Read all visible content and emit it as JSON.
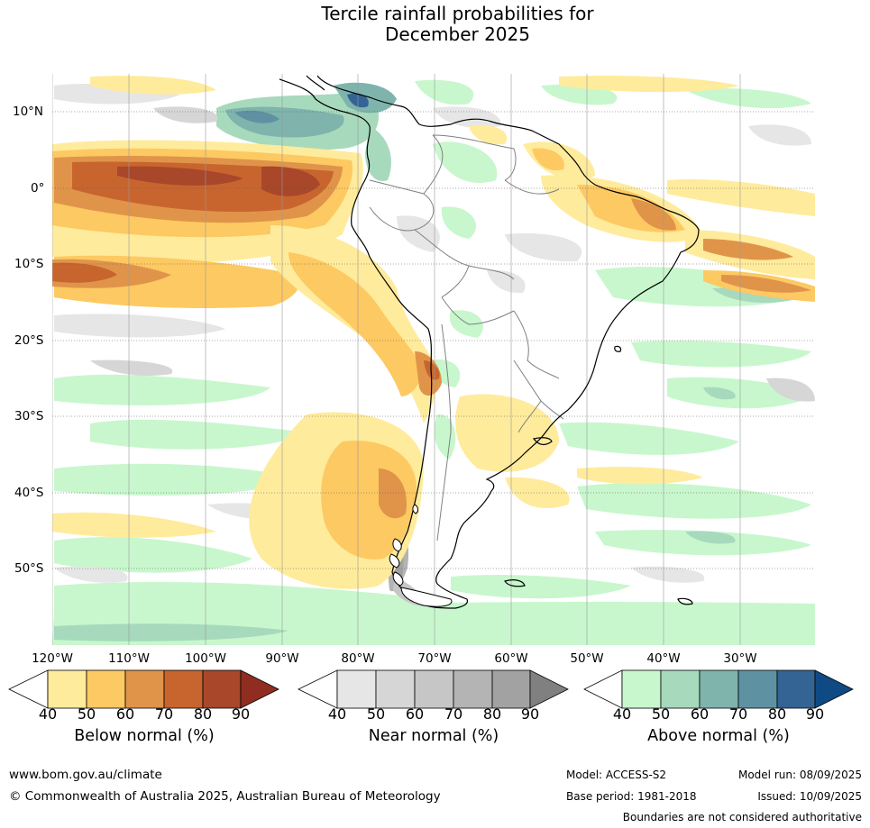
{
  "title": {
    "line1": "Tercile rainfall probabilities for",
    "line2": "December 2025"
  },
  "map": {
    "lat_labels": [
      "10°N",
      "0°",
      "10°S",
      "20°S",
      "30°S",
      "40°S",
      "50°S"
    ],
    "lon_labels": [
      "120°W",
      "110°W",
      "100°W",
      "90°W",
      "80°W",
      "70°W",
      "60°W",
      "50°W",
      "40°W",
      "30°W"
    ]
  },
  "colorbars": [
    {
      "label": "Below normal (%)",
      "ticks": [
        "40",
        "50",
        "60",
        "70",
        "80",
        "90"
      ],
      "colors": [
        "#ffffff",
        "#ffeb9c",
        "#fdc962",
        "#e0944a",
        "#c8652e",
        "#a8472a",
        "#8f2e20"
      ]
    },
    {
      "label": "Near normal (%)",
      "ticks": [
        "40",
        "50",
        "60",
        "70",
        "80",
        "90"
      ],
      "colors": [
        "#ffffff",
        "#e6e6e6",
        "#d6d6d6",
        "#c6c6c6",
        "#b4b4b4",
        "#a2a2a2",
        "#808080"
      ]
    },
    {
      "label": "Above normal (%)",
      "ticks": [
        "40",
        "50",
        "60",
        "70",
        "80",
        "90"
      ],
      "colors": [
        "#ffffff",
        "#c8f7cd",
        "#a7d9bd",
        "#7fb4ac",
        "#5e92a3",
        "#346494",
        "#104a85"
      ]
    }
  ],
  "footer": {
    "url": "www.bom.gov.au/climate",
    "copyright": "© Commonwealth of Australia 2025, Australian Bureau of Meteorology",
    "model": "Model: ACCESS-S2",
    "model_run": "Model run: 08/09/2025",
    "base_period": "Base period: 1981-2018",
    "issued": "Issued: 10/09/2025",
    "disclaimer": "Boundaries are not considered authoritative"
  }
}
